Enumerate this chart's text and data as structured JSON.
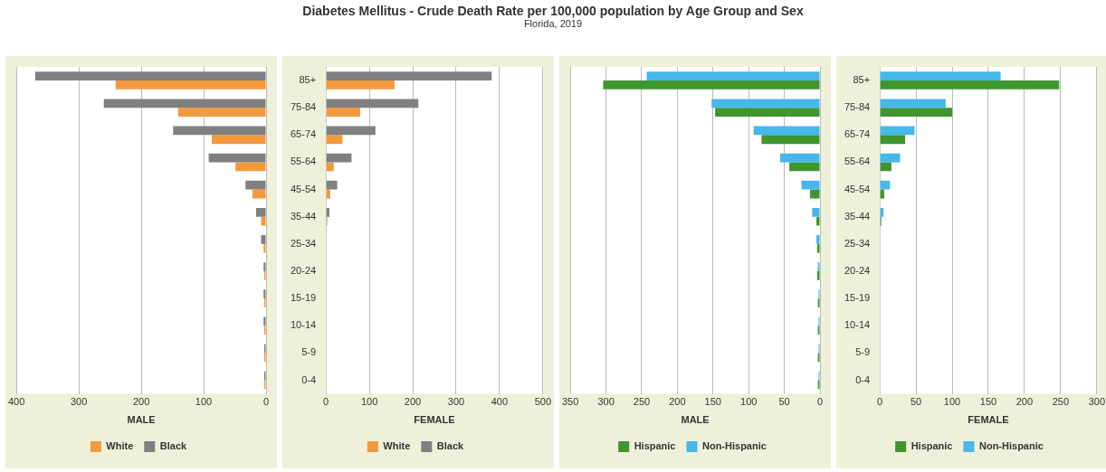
{
  "chart_data": [
    {
      "type": "bar",
      "orientation": "horizontal",
      "xlabel": "MALE",
      "categories": [
        null,
        null,
        null,
        null,
        null,
        null,
        null,
        null,
        null,
        null,
        null,
        null
      ],
      "series": [
        {
          "name": "White",
          "color": "#f39a3c",
          "values": [
            241,
            141,
            87,
            49,
            22,
            8,
            4,
            3,
            3,
            3,
            3,
            3
          ]
        },
        {
          "name": "Black",
          "color": "#808080",
          "values": [
            370,
            260,
            149,
            92,
            33,
            16,
            8,
            4,
            4,
            4,
            3,
            3
          ]
        }
      ],
      "xlim": [
        400,
        0
      ],
      "xticks": [
        400,
        300,
        200,
        100,
        0
      ],
      "grid": "x",
      "legend": "bottom",
      "tick_labels": "x"
    },
    {
      "type": "bar",
      "orientation": "horizontal",
      "title": "Diabetes Mellitus - Crude Death Rate per 100,000 population by Age Group and Sex",
      "subtitle": "Florida, 2019",
      "xlabel": "FEMALE",
      "categories": [
        "85+",
        "75-84",
        "65-74",
        "55-64",
        "45-54",
        "35-44",
        "25-34",
        "20-24",
        "15-19",
        "10-14",
        "5-9",
        "0-4"
      ],
      "series": [
        {
          "name": "White",
          "color": "#f39a3c",
          "values": [
            158,
            79,
            38,
            18,
            10,
            3,
            0,
            0,
            0,
            0,
            0,
            0
          ]
        },
        {
          "name": "Black",
          "color": "#808080",
          "values": [
            382,
            213,
            114,
            59,
            26,
            8,
            0,
            0,
            0,
            0,
            0,
            0
          ]
        }
      ],
      "xlim": [
        0,
        500
      ],
      "xticks": [
        0,
        100,
        200,
        300,
        400,
        500
      ],
      "grid": "x",
      "legend": "bottom"
    },
    {
      "type": "bar",
      "orientation": "horizontal",
      "xlabel": "MALE",
      "categories": [
        null,
        null,
        null,
        null,
        null,
        null,
        null,
        null,
        null,
        null,
        null,
        null
      ],
      "series": [
        {
          "name": "Hispanic",
          "color": "#3f962f",
          "values": [
            304,
            147,
            82,
            43,
            14,
            5,
            4,
            4,
            3,
            3,
            3,
            3
          ]
        },
        {
          "name": "Non-Hispanic",
          "color": "#45b7ea",
          "values": [
            243,
            152,
            93,
            56,
            26,
            11,
            5,
            3,
            2,
            2,
            2,
            2
          ]
        }
      ],
      "xlim": [
        350,
        0
      ],
      "xticks": [
        350,
        300,
        250,
        200,
        150,
        100,
        50,
        0
      ],
      "grid": "x",
      "legend": "bottom",
      "tick_labels": "x"
    },
    {
      "type": "bar",
      "orientation": "horizontal",
      "xlabel": "FEMALE",
      "categories": [
        "85+",
        "75-84",
        "65-74",
        "55-64",
        "45-54",
        "35-44",
        "25-34",
        "20-24",
        "15-19",
        "10-14",
        "5-9",
        "0-4"
      ],
      "series": [
        {
          "name": "Hispanic",
          "color": "#3f962f",
          "values": [
            248,
            100,
            35,
            16,
            6,
            2,
            0,
            0,
            0,
            0,
            0,
            0
          ]
        },
        {
          "name": "Non-Hispanic",
          "color": "#45b7ea",
          "values": [
            167,
            91,
            48,
            28,
            14,
            5,
            0,
            0,
            0,
            0,
            0,
            0
          ]
        }
      ],
      "xlim": [
        0,
        300
      ],
      "xticks": [
        0,
        50,
        100,
        150,
        200,
        250,
        300
      ],
      "grid": "x",
      "legend": "bottom"
    }
  ]
}
